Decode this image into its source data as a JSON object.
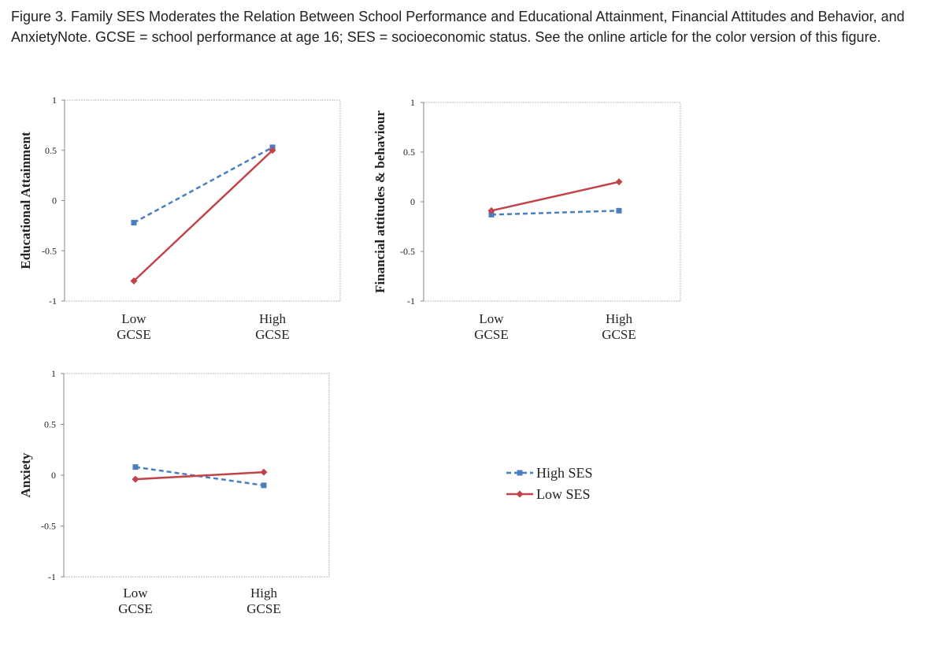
{
  "caption": "Figure 3. Family SES Moderates the Relation Between School Performance and Educational Attainment, Financial Attitudes and Behavior, and AnxietyNote. GCSE = school performance at age 16; SES = socioeconomic status. See the online article for the color version of this figure.",
  "colors": {
    "high_ses": "#4a7ebf",
    "low_ses": "#c0444a",
    "axis": "#888888",
    "text": "#222222"
  },
  "legend": {
    "high_label": "High SES",
    "low_label": "Low SES"
  },
  "chart_data": [
    {
      "type": "line",
      "ylabel": "Educational Attainment",
      "categories": [
        "Low GCSE",
        "High GCSE"
      ],
      "category_lines": [
        [
          "Low",
          "GCSE"
        ],
        [
          "High",
          "GCSE"
        ]
      ],
      "ylim": [
        -1,
        1
      ],
      "yticks": [
        "1",
        "0.5",
        "0",
        "-0.5",
        "-1"
      ],
      "series": [
        {
          "name": "High SES",
          "values": [
            -0.22,
            0.53
          ]
        },
        {
          "name": "Low SES",
          "values": [
            -0.8,
            0.5
          ]
        }
      ]
    },
    {
      "type": "line",
      "ylabel": "Financial attitudes & behaviour",
      "categories": [
        "Low GCSE",
        "High GCSE"
      ],
      "category_lines": [
        [
          "Low",
          "GCSE"
        ],
        [
          "High",
          "GCSE"
        ]
      ],
      "ylim": [
        -1,
        1
      ],
      "yticks": [
        "1",
        "0.5",
        "0",
        "-0.5",
        "-1"
      ],
      "series": [
        {
          "name": "High SES",
          "values": [
            -0.13,
            -0.09
          ]
        },
        {
          "name": "Low SES",
          "values": [
            -0.09,
            0.2
          ]
        }
      ]
    },
    {
      "type": "line",
      "ylabel": "Anxiety",
      "categories": [
        "Low GCSE",
        "High GCSE"
      ],
      "category_lines": [
        [
          "Low",
          "GCSE"
        ],
        [
          "High",
          "GCSE"
        ]
      ],
      "ylim": [
        -1,
        1
      ],
      "yticks": [
        "1",
        "0.5",
        "0",
        "-0.5",
        "-1"
      ],
      "series": [
        {
          "name": "High SES",
          "values": [
            0.08,
            -0.1
          ]
        },
        {
          "name": "Low SES",
          "values": [
            -0.04,
            0.03
          ]
        }
      ]
    }
  ]
}
